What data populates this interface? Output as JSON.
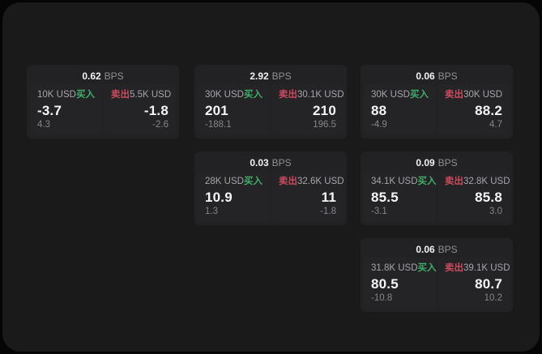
{
  "unit_label": "BPS",
  "buy_label": "买入",
  "sell_label": "卖出",
  "colors": {
    "buy": "#3fae6a",
    "sell": "#cc4a5e",
    "panel_bg": "#1a1a1b",
    "card_bg": "#222224",
    "tile_bg": "#242427"
  },
  "cards": [
    {
      "bps": "0.62",
      "col": 0,
      "row": 0,
      "buy": {
        "notional": "10K USD",
        "price": "-3.7",
        "delta": "4.3"
      },
      "sell": {
        "notional": "5.5K USD",
        "price": "-1.8",
        "delta": "-2.6"
      }
    },
    {
      "bps": "2.92",
      "col": 1,
      "row": 0,
      "buy": {
        "notional": "30K USD",
        "price": "201",
        "delta": "-188.1"
      },
      "sell": {
        "notional": "30.1K USD",
        "price": "210",
        "delta": "196.5"
      }
    },
    {
      "bps": "0.06",
      "col": 2,
      "row": 0,
      "buy": {
        "notional": "30K USD",
        "price": "88",
        "delta": "-4.9"
      },
      "sell": {
        "notional": "30K USD",
        "price": "88.2",
        "delta": "4.7"
      }
    },
    {
      "bps": "0.03",
      "col": 1,
      "row": 1,
      "buy": {
        "notional": "28K USD",
        "price": "10.9",
        "delta": "1.3"
      },
      "sell": {
        "notional": "32.6K USD",
        "price": "11",
        "delta": "-1.8"
      }
    },
    {
      "bps": "0.09",
      "col": 2,
      "row": 1,
      "buy": {
        "notional": "34.1K USD",
        "price": "85.5",
        "delta": "-3.1"
      },
      "sell": {
        "notional": "32.8K USD",
        "price": "85.8",
        "delta": "3.0"
      }
    },
    {
      "bps": "0.06",
      "col": 2,
      "row": 2,
      "buy": {
        "notional": "31.8K USD",
        "price": "80.5",
        "delta": "-10.8"
      },
      "sell": {
        "notional": "39.1K USD",
        "price": "80.7",
        "delta": "10.2"
      }
    }
  ]
}
